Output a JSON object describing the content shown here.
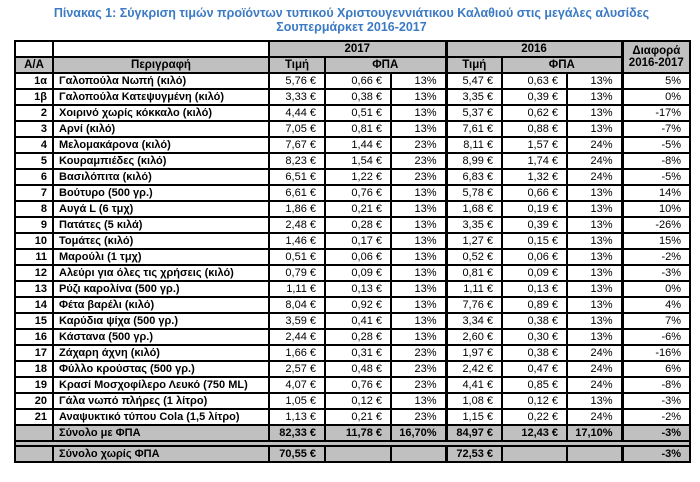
{
  "title": {
    "line1": "Πίνακας 1: Σύγκριση τιμών προϊόντων τυπικού Χριστουγεννιάτικου Καλαθιού στις μεγάλες αλυσίδες",
    "line2": "Σουπερμάρκετ 2016-2017"
  },
  "colors": {
    "title_blue": "#3b7ac4",
    "header_gray": "#c0c0c0",
    "border_black": "#000000"
  },
  "table": {
    "header": {
      "aa": "Α/Α",
      "description": "Περιγραφή",
      "year_2017": "2017",
      "year_2016": "2016",
      "price": "Τιμή",
      "vat": "ΦΠΑ",
      "price2": "Τιμή",
      "vat2": "ΦΠΑ",
      "diff_line1": "Διαφορά",
      "diff_line2": "2016-2017"
    },
    "rows": [
      {
        "aa": "1α",
        "desc": "Γαλοπούλα Νωπή (κιλό)",
        "p17": "5,76 €",
        "v17": "0,66 €",
        "pct17": "13%",
        "p16": "5,47 €",
        "v16": "0,63 €",
        "pct16": "13%",
        "diff": "5%"
      },
      {
        "aa": "1β",
        "desc": "Γαλοπούλα Κατεψυγμένη (κιλό)",
        "p17": "3,33 €",
        "v17": "0,38 €",
        "pct17": "13%",
        "p16": "3,35 €",
        "v16": "0,39 €",
        "pct16": "13%",
        "diff": "0%"
      },
      {
        "aa": "2",
        "desc": "Χοιρινό χωρίς κόκκαλο (κιλό)",
        "p17": "4,44 €",
        "v17": "0,51 €",
        "pct17": "13%",
        "p16": "5,37 €",
        "v16": "0,62 €",
        "pct16": "13%",
        "diff": "-17%"
      },
      {
        "aa": "3",
        "desc": "Αρνί (κιλό)",
        "p17": "7,05 €",
        "v17": "0,81 €",
        "pct17": "13%",
        "p16": "7,61 €",
        "v16": "0,88 €",
        "pct16": "13%",
        "diff": "-7%"
      },
      {
        "aa": "4",
        "desc": "Μελομακάρονα (κιλό)",
        "p17": "7,67 €",
        "v17": "1,44 €",
        "pct17": "23%",
        "p16": "8,11 €",
        "v16": "1,57 €",
        "pct16": "24%",
        "diff": "-5%"
      },
      {
        "aa": "5",
        "desc": "Κουραμπιέδες (κιλό)",
        "p17": "8,23 €",
        "v17": "1,54 €",
        "pct17": "23%",
        "p16": "8,99 €",
        "v16": "1,74 €",
        "pct16": "24%",
        "diff": "-8%"
      },
      {
        "aa": "6",
        "desc": "Βασιλόπιτα (κιλό)",
        "p17": "6,51 €",
        "v17": "1,22 €",
        "pct17": "23%",
        "p16": "6,83 €",
        "v16": "1,32 €",
        "pct16": "24%",
        "diff": "-5%"
      },
      {
        "aa": "7",
        "desc": "Βούτυρο (500 γρ.)",
        "p17": "6,61 €",
        "v17": "0,76 €",
        "pct17": "13%",
        "p16": "5,78 €",
        "v16": "0,66 €",
        "pct16": "13%",
        "diff": "14%"
      },
      {
        "aa": "8",
        "desc": "Αυγά L (6 τμχ)",
        "p17": "1,86 €",
        "v17": "0,21 €",
        "pct17": "13%",
        "p16": "1,68 €",
        "v16": "0,19 €",
        "pct16": "13%",
        "diff": "10%"
      },
      {
        "aa": "9",
        "desc": "Πατάτες (5 κιλά)",
        "p17": "2,48 €",
        "v17": "0,28 €",
        "pct17": "13%",
        "p16": "3,35 €",
        "v16": "0,39 €",
        "pct16": "13%",
        "diff": "-26%"
      },
      {
        "aa": "10",
        "desc": "Τομάτες (κιλό)",
        "p17": "1,46 €",
        "v17": "0,17 €",
        "pct17": "13%",
        "p16": "1,27 €",
        "v16": "0,15 €",
        "pct16": "13%",
        "diff": "15%"
      },
      {
        "aa": "11",
        "desc": "Μαρούλι (1 τμχ)",
        "p17": "0,51 €",
        "v17": "0,06 €",
        "pct17": "13%",
        "p16": "0,52 €",
        "v16": "0,06 €",
        "pct16": "13%",
        "diff": "-2%"
      },
      {
        "aa": "12",
        "desc": "Αλεύρι για όλες τις χρήσεις (κιλό)",
        "p17": "0,79 €",
        "v17": "0,09 €",
        "pct17": "13%",
        "p16": "0,81 €",
        "v16": "0,09 €",
        "pct16": "13%",
        "diff": "-3%"
      },
      {
        "aa": "13",
        "desc": "Ρύζι καρολίνα (500 γρ.)",
        "p17": "1,11 €",
        "v17": "0,13 €",
        "pct17": "13%",
        "p16": "1,11 €",
        "v16": "0,13 €",
        "pct16": "13%",
        "diff": "0%"
      },
      {
        "aa": "14",
        "desc": "Φέτα βαρέλι (κιλό)",
        "p17": "8,04 €",
        "v17": "0,92 €",
        "pct17": "13%",
        "p16": "7,76 €",
        "v16": "0,89 €",
        "pct16": "13%",
        "diff": "4%"
      },
      {
        "aa": "15",
        "desc": "Καρύδια ψίχα (500 γρ.)",
        "p17": "3,59 €",
        "v17": "0,41 €",
        "pct17": "13%",
        "p16": "3,34 €",
        "v16": "0,38 €",
        "pct16": "13%",
        "diff": "7%"
      },
      {
        "aa": "16",
        "desc": "Κάστανα (500 γρ.)",
        "p17": "2,44 €",
        "v17": "0,28 €",
        "pct17": "13%",
        "p16": "2,60 €",
        "v16": "0,30 €",
        "pct16": "13%",
        "diff": "-6%"
      },
      {
        "aa": "17",
        "desc": "Ζάχαρη άχνη (κιλό)",
        "p17": "1,66 €",
        "v17": "0,31 €",
        "pct17": "23%",
        "p16": "1,97 €",
        "v16": "0,38 €",
        "pct16": "24%",
        "diff": "-16%"
      },
      {
        "aa": "18",
        "desc": "Φύλλο κρούστας (500 γρ.)",
        "p17": "2,57 €",
        "v17": "0,48 €",
        "pct17": "23%",
        "p16": "2,42 €",
        "v16": "0,47 €",
        "pct16": "24%",
        "diff": "6%"
      },
      {
        "aa": "19",
        "desc": "Κρασί Μοσχοφίλερο Λευκό (750 ML)",
        "p17": "4,07 €",
        "v17": "0,76 €",
        "pct17": "23%",
        "p16": "4,41 €",
        "v16": "0,85 €",
        "pct16": "24%",
        "diff": "-8%"
      },
      {
        "aa": "20",
        "desc": "Γάλα νωπό πλήρες (1 λίτρο)",
        "p17": "1,05 €",
        "v17": "0,12 €",
        "pct17": "13%",
        "p16": "1,08 €",
        "v16": "0,12 €",
        "pct16": "13%",
        "diff": "-3%"
      },
      {
        "aa": "21",
        "desc": "Αναψυκτικό τύπου Cola (1,5 λίτρο)",
        "p17": "1,13 €",
        "v17": "0,21 €",
        "pct17": "23%",
        "p16": "1,15 €",
        "v16": "0,22 €",
        "pct16": "24%",
        "diff": "-2%"
      }
    ],
    "totals": [
      {
        "aa": "",
        "label": "Σύνολο με ΦΠΑ",
        "p17": "82,33 €",
        "v17": "11,78 €",
        "pct17": "16,70%",
        "p16": "84,97 €",
        "v16": "12,43 €",
        "pct16": "17,10%",
        "diff": "-3%"
      },
      {
        "aa": "",
        "label": "Σύνολο χωρίς ΦΠΑ",
        "p17": "70,55 €",
        "v17": "",
        "pct17": "",
        "p16": "72,53 €",
        "v16": "",
        "pct16": "",
        "diff": "-3%"
      }
    ]
  }
}
